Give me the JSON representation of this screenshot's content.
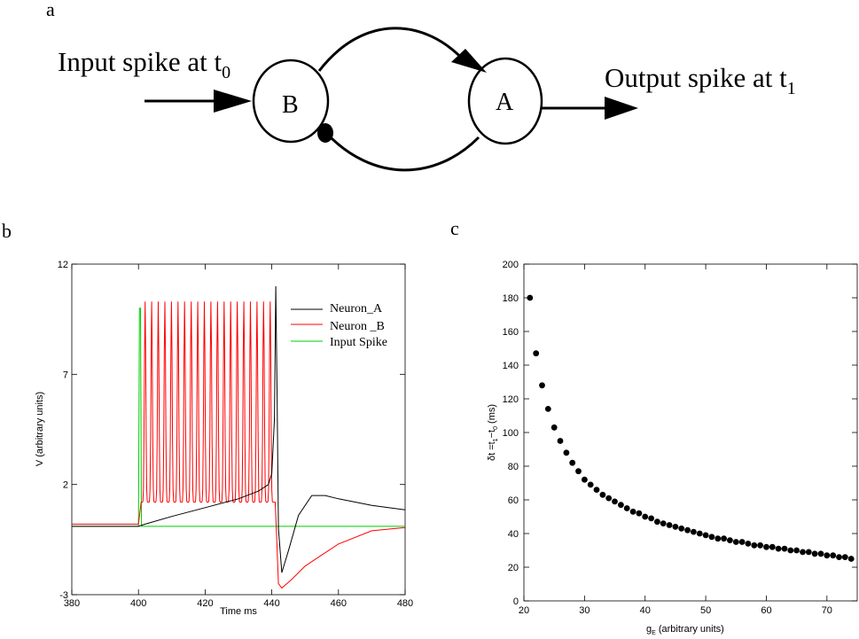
{
  "panel_a": {
    "label": "a",
    "input_text": "Input spike at t",
    "input_sub": "0",
    "output_text": "Output spike at t",
    "output_sub": "1",
    "neuron_b": "B",
    "neuron_a": "A"
  },
  "panel_b": {
    "label": "b"
  },
  "panel_c": {
    "label": "c"
  },
  "chart_data": [
    {
      "type": "line",
      "xlabel": "Time ms",
      "ylabel": "V (arbitrary units)",
      "xlim": [
        380,
        480
      ],
      "ylim": [
        -3,
        12
      ],
      "xticks": [
        380,
        400,
        420,
        440,
        460,
        480
      ],
      "yticks": [
        -3,
        2,
        7,
        12
      ],
      "grid": false,
      "legend_position": "top-right",
      "legend": [
        "Neuron_A",
        "Neuron _B",
        "Input Spike"
      ],
      "series": [
        {
          "name": "Neuron_A",
          "color": "#000000",
          "x": [
            380,
            400,
            402,
            410,
            420,
            430,
            436,
            439,
            440,
            440.8,
            441.2,
            441.6,
            442,
            443,
            445,
            448,
            452,
            456,
            460,
            470,
            480
          ],
          "y": [
            0.1,
            0.1,
            0.2,
            0.55,
            0.95,
            1.35,
            1.7,
            2.0,
            2.5,
            5.0,
            11.0,
            6.0,
            0.0,
            -2.0,
            -1.0,
            0.6,
            1.5,
            1.5,
            1.35,
            1.05,
            0.85
          ]
        },
        {
          "name": "Neuron _B",
          "color": "#ff0000",
          "spike_train": {
            "start": 401,
            "end": 440.5,
            "count": 20,
            "peak": 10.3,
            "trough": 1.2
          },
          "x": [
            380,
            400,
            400.8,
            441,
            441.5,
            442,
            443,
            446,
            450,
            455,
            460,
            470,
            480
          ],
          "y": [
            0.2,
            0.2,
            1.2,
            1.2,
            -0.5,
            -2.5,
            -2.7,
            -2.3,
            -1.7,
            -1.2,
            -0.7,
            -0.1,
            0.05
          ]
        },
        {
          "name": "Input Spike",
          "color": "#00cc00",
          "x": [
            380,
            400.0,
            400.3,
            400.6,
            400.9,
            401.2,
            480
          ],
          "y": [
            0.1,
            0.1,
            10.0,
            10.0,
            0.1,
            0.1,
            0.1
          ]
        }
      ]
    },
    {
      "type": "scatter",
      "xlabel": "g",
      "xlabel_sub": "E",
      "xlabel_rest": " (arbitrary units)",
      "ylabel": "δt =t",
      "ylabel_sub1": "1",
      "ylabel_mid": "−t",
      "ylabel_sub2": "0",
      "ylabel_rest": " (ms)",
      "xlim": [
        20,
        75
      ],
      "ylim": [
        0,
        200
      ],
      "xticks": [
        20,
        30,
        40,
        50,
        60,
        70
      ],
      "yticks": [
        0,
        20,
        40,
        60,
        80,
        100,
        120,
        140,
        160,
        180,
        200
      ],
      "grid": false,
      "series": [
        {
          "color": "#000000",
          "x": [
            21,
            22,
            23,
            24,
            25,
            26,
            27,
            28,
            29,
            30,
            31,
            32,
            33,
            34,
            35,
            36,
            37,
            38,
            39,
            40,
            41,
            42,
            43,
            44,
            45,
            46,
            47,
            48,
            49,
            50,
            51,
            52,
            53,
            54,
            55,
            56,
            57,
            58,
            59,
            60,
            61,
            62,
            63,
            64,
            65,
            66,
            67,
            68,
            69,
            70,
            71,
            72,
            73,
            74
          ],
          "y": [
            180,
            147,
            128,
            114,
            103,
            95,
            88,
            82,
            77,
            72,
            69,
            66,
            63,
            61,
            59,
            57,
            55,
            53,
            52,
            50,
            49,
            47,
            46,
            45,
            44,
            43,
            42,
            41,
            40,
            39,
            38,
            37,
            37,
            36,
            35,
            35,
            34,
            33,
            33,
            32,
            32,
            31,
            31,
            30,
            30,
            29,
            29,
            28,
            28,
            27,
            27,
            26,
            26,
            25
          ]
        }
      ]
    }
  ]
}
